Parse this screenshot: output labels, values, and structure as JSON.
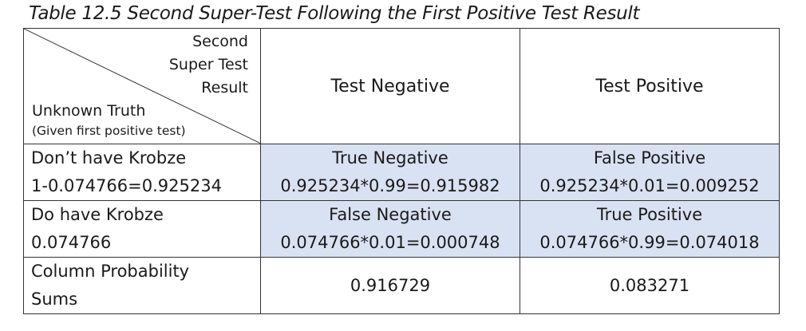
{
  "caption": "Table 12.5 Second Super-Test Following the First Positive Test Result",
  "corner": {
    "top_lines": [
      "Second",
      "Super Test",
      "Result"
    ],
    "bottom_line1": "Unknown Truth",
    "bottom_line2": "(Given first positive test)"
  },
  "columns": [
    "Test Negative",
    "Test Positive"
  ],
  "rows": [
    {
      "label": "Don’t have Krobze",
      "sublabel": "1-0.074766=0.925234",
      "cells": [
        {
          "title": "True Negative",
          "value": "0.925234*0.99=0.915982"
        },
        {
          "title": "False Positive",
          "value": "0.925234*0.01=0.009252"
        }
      ]
    },
    {
      "label": "Do have Krobze",
      "sublabel": "0.074766",
      "cells": [
        {
          "title": "False Negative",
          "value": "0.074766*0.01=0.000748"
        },
        {
          "title": "True Positive",
          "value": "0.074766*0.99=0.074018"
        }
      ]
    }
  ],
  "sums": {
    "label_line1": "Column Probability",
    "label_line2": "Sums",
    "values": [
      "0.916729",
      "0.083271"
    ]
  }
}
